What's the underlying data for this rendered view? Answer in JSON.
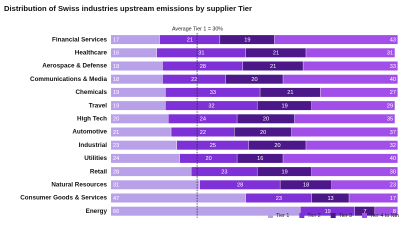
{
  "chart_data": {
    "type": "stacked-barh",
    "title": "Distribution of Swiss industries upstream emissions by supplier Tier",
    "annotation": {
      "text": "Average Tier 1 = 30%",
      "value": 30
    },
    "xlim": [
      0,
      100
    ],
    "categories": [
      "Financial Services",
      "Healthcare",
      "Aerospace & Defense",
      "Communications & Media",
      "Chemicals",
      "Travel",
      "High Tech",
      "Automotive",
      "Industrial",
      "Utilities",
      "Retail",
      "Natural Resources",
      "Consumer Goods & Services",
      "Energy"
    ],
    "series": [
      {
        "name": "Tier 1",
        "color": "#b8a1e8",
        "values": [
          17,
          16,
          18,
          18,
          19,
          19,
          20,
          21,
          23,
          24,
          28,
          31,
          47,
          66
        ]
      },
      {
        "name": "Tier 2",
        "color": "#7d31d6",
        "values": [
          21,
          31,
          28,
          22,
          33,
          32,
          24,
          22,
          25,
          20,
          23,
          28,
          23,
          19
        ]
      },
      {
        "name": "Tier 3",
        "color": "#4b1789",
        "values": [
          19,
          21,
          21,
          20,
          21,
          19,
          20,
          20,
          20,
          16,
          19,
          18,
          13,
          7
        ]
      },
      {
        "name": "Tier 4 to Nth",
        "color": "#a24ee8",
        "values": [
          43,
          31,
          33,
          40,
          27,
          29,
          35,
          37,
          32,
          40,
          30,
          23,
          17,
          8
        ]
      }
    ]
  }
}
